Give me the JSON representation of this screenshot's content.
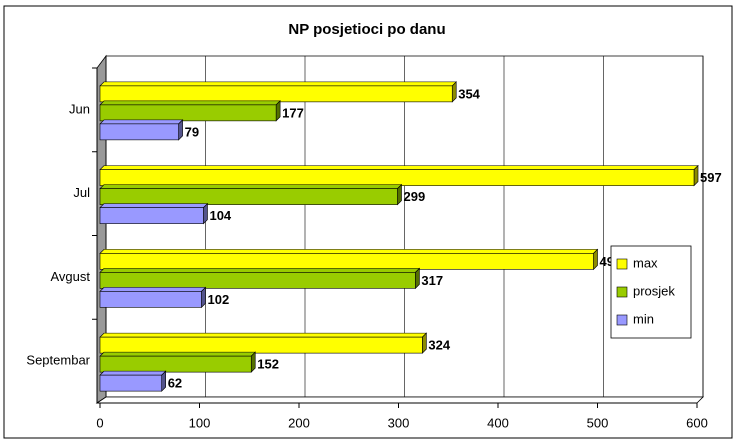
{
  "chart_data": {
    "type": "bar",
    "orientation": "horizontal",
    "title": "NP posjetioci po danu",
    "categories": [
      "Jun",
      "Jul",
      "Avgust",
      "Septembar"
    ],
    "series": [
      {
        "name": "max",
        "color": "#ffff00",
        "values": [
          354,
          597,
          496,
          324
        ]
      },
      {
        "name": "prosjek",
        "color": "#99cc00",
        "values": [
          177,
          299,
          317,
          152
        ]
      },
      {
        "name": "min",
        "color": "#9999ff",
        "values": [
          79,
          104,
          102,
          62
        ]
      }
    ],
    "xlim": [
      0,
      600
    ],
    "xticks": [
      0,
      100,
      200,
      300,
      400,
      500,
      600
    ],
    "grid": true,
    "legend": "right"
  }
}
